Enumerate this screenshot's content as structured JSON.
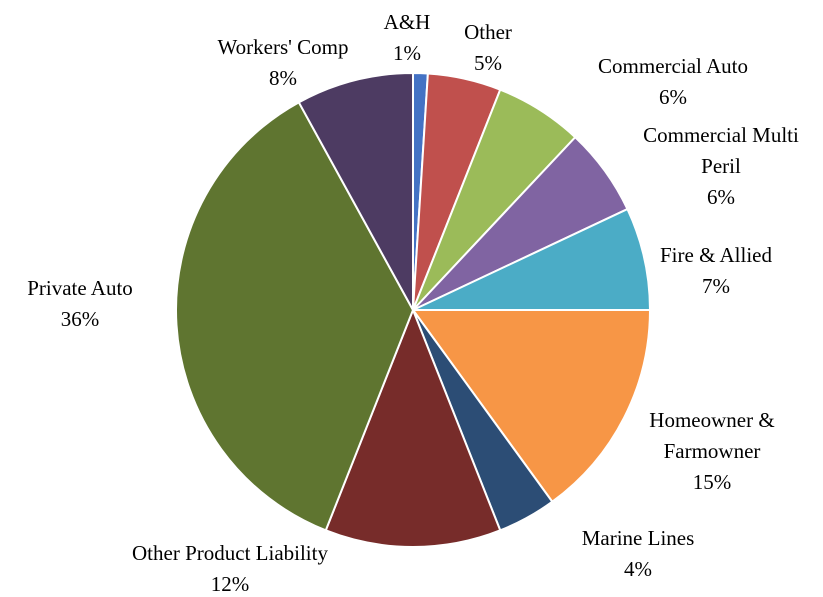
{
  "chart_data": {
    "type": "pie",
    "categories": [
      "A&H",
      "Other",
      "Commercial Auto",
      "Commercial Multi Peril",
      "Fire & Allied",
      "Homeowner & Farmowner",
      "Marine Lines",
      "Other Product Liability",
      "Private Auto",
      "Workers' Comp"
    ],
    "values": [
      1,
      5,
      6,
      6,
      7,
      15,
      4,
      12,
      36,
      8
    ],
    "value_labels": [
      "1%",
      "5%",
      "6%",
      "6%",
      "7%",
      "15%",
      "4%",
      "12%",
      "36%",
      "8%"
    ],
    "colors": [
      "#4472c4",
      "#c0504d",
      "#9bbb59",
      "#8064a2",
      "#4bacc6",
      "#f79646",
      "#2c4d75",
      "#772c2a",
      "#5f7530",
      "#4d3b62"
    ]
  }
}
